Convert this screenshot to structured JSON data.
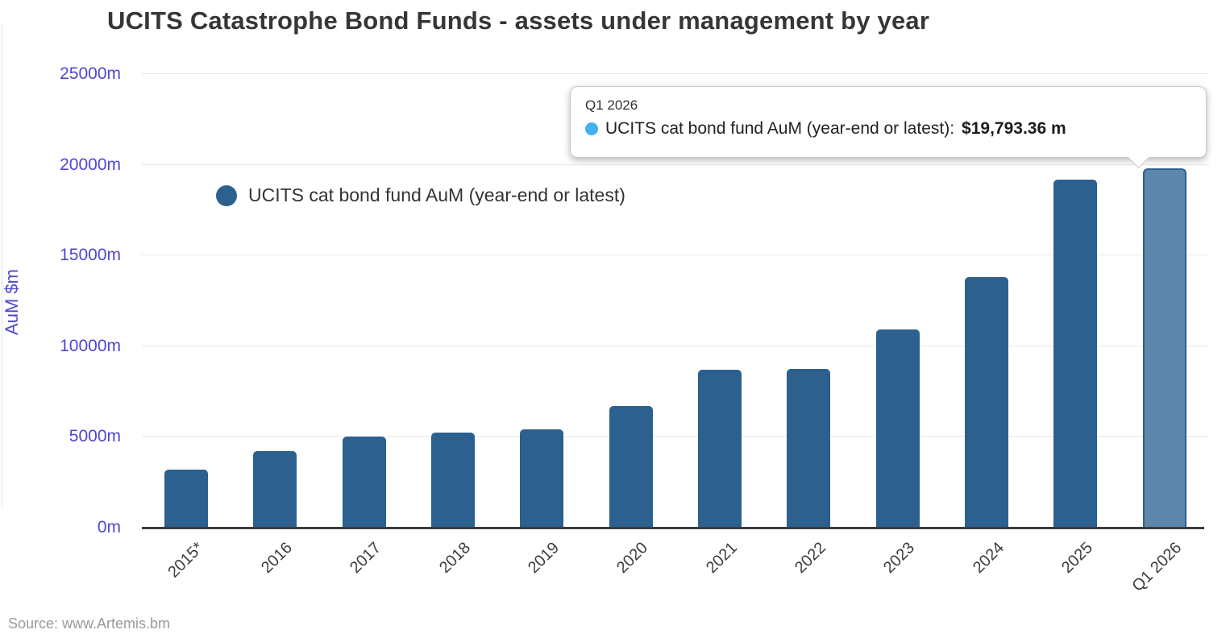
{
  "chart": {
    "title": "UCITS Catastrophe Bond Funds - assets under management by year",
    "ylabel": "AuM $m",
    "legend_label": "UCITS cat bond fund AuM (year-end or latest)",
    "source": "Source: www.Artemis.bm"
  },
  "tooltip": {
    "header": "Q1 2026",
    "series_label": "UCITS cat bond fund AuM (year-end or latest):",
    "value": "$19,793.36 m"
  },
  "chart_data": {
    "type": "bar",
    "title": "UCITS Catastrophe Bond Funds - assets under management by year",
    "xlabel": "",
    "ylabel": "AuM $m",
    "categories": [
      "2015*",
      "2016",
      "2017",
      "2018",
      "2019",
      "2020",
      "2021",
      "2022",
      "2023",
      "2024",
      "2025",
      "Q1 2026"
    ],
    "values": [
      3180,
      4210,
      5030,
      5220,
      5440,
      6700,
      8700,
      8770,
      10910,
      13830,
      19200,
      19793.36
    ],
    "series": [
      {
        "name": "UCITS cat bond fund AuM (year-end or latest)",
        "values": [
          3180,
          4210,
          5030,
          5220,
          5440,
          6700,
          8700,
          8770,
          10910,
          13830,
          19200,
          19793.36
        ]
      }
    ],
    "ylim": [
      0,
      25000
    ],
    "yticks": [
      "0m",
      "5000m",
      "10000m",
      "15000m",
      "20000m",
      "25000m"
    ],
    "ytick_values": [
      0,
      5000,
      10000,
      15000,
      20000,
      25000
    ],
    "grid": true,
    "legend_position": "inside-top-left",
    "highlighted_category": "Q1 2026",
    "tooltip": {
      "category": "Q1 2026",
      "value_text": "$19,793.36 m"
    },
    "colors": {
      "bar": "#2b608f",
      "highlight_fill": "#5d88ab",
      "highlight_border": "#2b608f",
      "axis_label": "#4f46d0",
      "tooltip_dot": "#41b1f0",
      "title": "#363636",
      "gridline": "#e8e8e8",
      "axis_line": "#3c3c3c",
      "source_text": "#9a9a9a"
    }
  }
}
